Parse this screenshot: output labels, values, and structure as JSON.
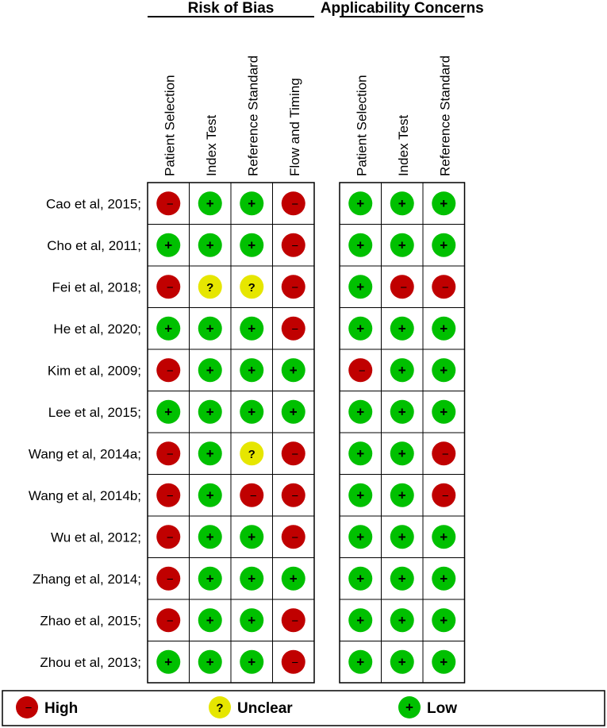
{
  "chart_data": {
    "type": "table",
    "groups": [
      {
        "title": "Risk of Bias",
        "domains": [
          "Patient Selection",
          "Index Test",
          "Reference Standard",
          "Flow and Timing"
        ]
      },
      {
        "title": "Applicability Concerns",
        "domains": [
          "Patient Selection",
          "Index Test",
          "Reference Standard"
        ]
      }
    ],
    "studies": [
      {
        "label": "Cao et al, 2015;",
        "risk": [
          "high",
          "low",
          "low",
          "high"
        ],
        "applicability": [
          "low",
          "low",
          "low"
        ]
      },
      {
        "label": "Cho et al, 2011;",
        "risk": [
          "low",
          "low",
          "low",
          "high"
        ],
        "applicability": [
          "low",
          "low",
          "low"
        ]
      },
      {
        "label": "Fei et al, 2018;",
        "risk": [
          "high",
          "unclear",
          "unclear",
          "high"
        ],
        "applicability": [
          "low",
          "high",
          "high"
        ]
      },
      {
        "label": "He et al, 2020;",
        "risk": [
          "low",
          "low",
          "low",
          "high"
        ],
        "applicability": [
          "low",
          "low",
          "low"
        ]
      },
      {
        "label": "Kim et al, 2009;",
        "risk": [
          "high",
          "low",
          "low",
          "low"
        ],
        "applicability": [
          "high",
          "low",
          "low"
        ]
      },
      {
        "label": "Lee et al, 2015;",
        "risk": [
          "low",
          "low",
          "low",
          "low"
        ],
        "applicability": [
          "low",
          "low",
          "low"
        ]
      },
      {
        "label": "Wang et al, 2014a;",
        "risk": [
          "high",
          "low",
          "unclear",
          "high"
        ],
        "applicability": [
          "low",
          "low",
          "high"
        ]
      },
      {
        "label": "Wang et al, 2014b;",
        "risk": [
          "high",
          "low",
          "high",
          "high"
        ],
        "applicability": [
          "low",
          "low",
          "high"
        ]
      },
      {
        "label": "Wu et al, 2012;",
        "risk": [
          "high",
          "low",
          "low",
          "high"
        ],
        "applicability": [
          "low",
          "low",
          "low"
        ]
      },
      {
        "label": "Zhang et al, 2014;",
        "risk": [
          "high",
          "low",
          "low",
          "low"
        ],
        "applicability": [
          "low",
          "low",
          "low"
        ]
      },
      {
        "label": "Zhao et al, 2015;",
        "risk": [
          "high",
          "low",
          "low",
          "high"
        ],
        "applicability": [
          "low",
          "low",
          "low"
        ]
      },
      {
        "label": "Zhou et al, 2013;",
        "risk": [
          "low",
          "low",
          "low",
          "high"
        ],
        "applicability": [
          "low",
          "low",
          "low"
        ]
      }
    ],
    "judgements": {
      "high": {
        "label": "High",
        "symbol": "−",
        "color": "#c00000"
      },
      "unclear": {
        "label": "Unclear",
        "symbol": "?",
        "color": "#e6e600"
      },
      "low": {
        "label": "Low",
        "symbol": "+",
        "color": "#00c000"
      }
    },
    "legend": {
      "placement": "bottom",
      "order": [
        "high",
        "unclear",
        "low"
      ]
    }
  }
}
